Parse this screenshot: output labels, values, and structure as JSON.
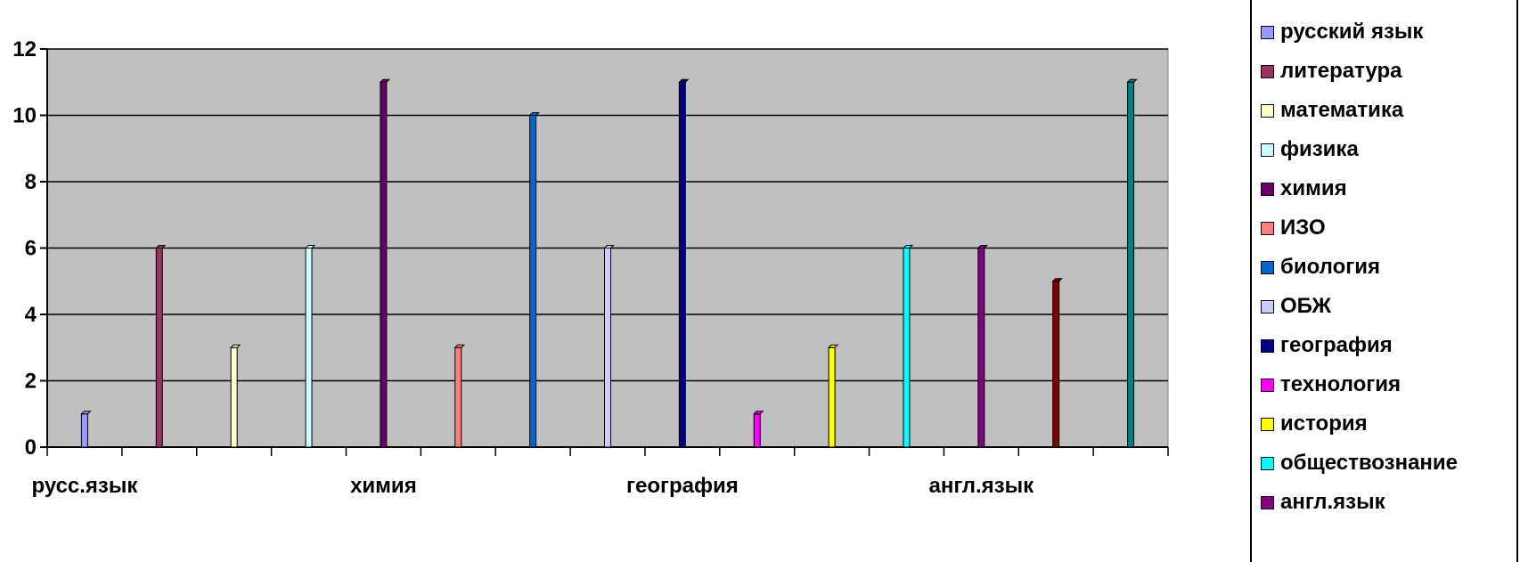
{
  "chart_data": {
    "type": "bar",
    "ylim": [
      0,
      12
    ],
    "yticks": [
      "0",
      "2",
      "4",
      "6",
      "8",
      "10",
      "12"
    ],
    "category_labels": [
      "русс.язык",
      "химия",
      "география",
      "англ.язык"
    ],
    "grid": true,
    "legend_position": "right",
    "plot_background": "#c0c0c0",
    "series": [
      {
        "name": "русский язык",
        "value": 1,
        "color": "#9999ff"
      },
      {
        "name": "литература",
        "value": 6,
        "color": "#993366"
      },
      {
        "name": "математика",
        "value": 3,
        "color": "#ffffcc"
      },
      {
        "name": "физика",
        "value": 6,
        "color": "#ccffff"
      },
      {
        "name": "химия",
        "value": 11,
        "color": "#660066"
      },
      {
        "name": "ИЗО",
        "value": 3,
        "color": "#ff8080"
      },
      {
        "name": "биология",
        "value": 10,
        "color": "#0066cc"
      },
      {
        "name": "ОБЖ",
        "value": 6,
        "color": "#ccccff"
      },
      {
        "name": "география",
        "value": 11,
        "color": "#000080"
      },
      {
        "name": "технология",
        "value": 1,
        "color": "#ff00ff"
      },
      {
        "name": "история",
        "value": 3,
        "color": "#ffff00"
      },
      {
        "name": "обществознание",
        "value": 6,
        "color": "#00ffff"
      },
      {
        "name": "англ.язык",
        "value": 6,
        "color": "#800080"
      },
      {
        "name": "",
        "value": 5,
        "color": "#800000"
      },
      {
        "name": "",
        "value": 11,
        "color": "#008080"
      }
    ]
  }
}
